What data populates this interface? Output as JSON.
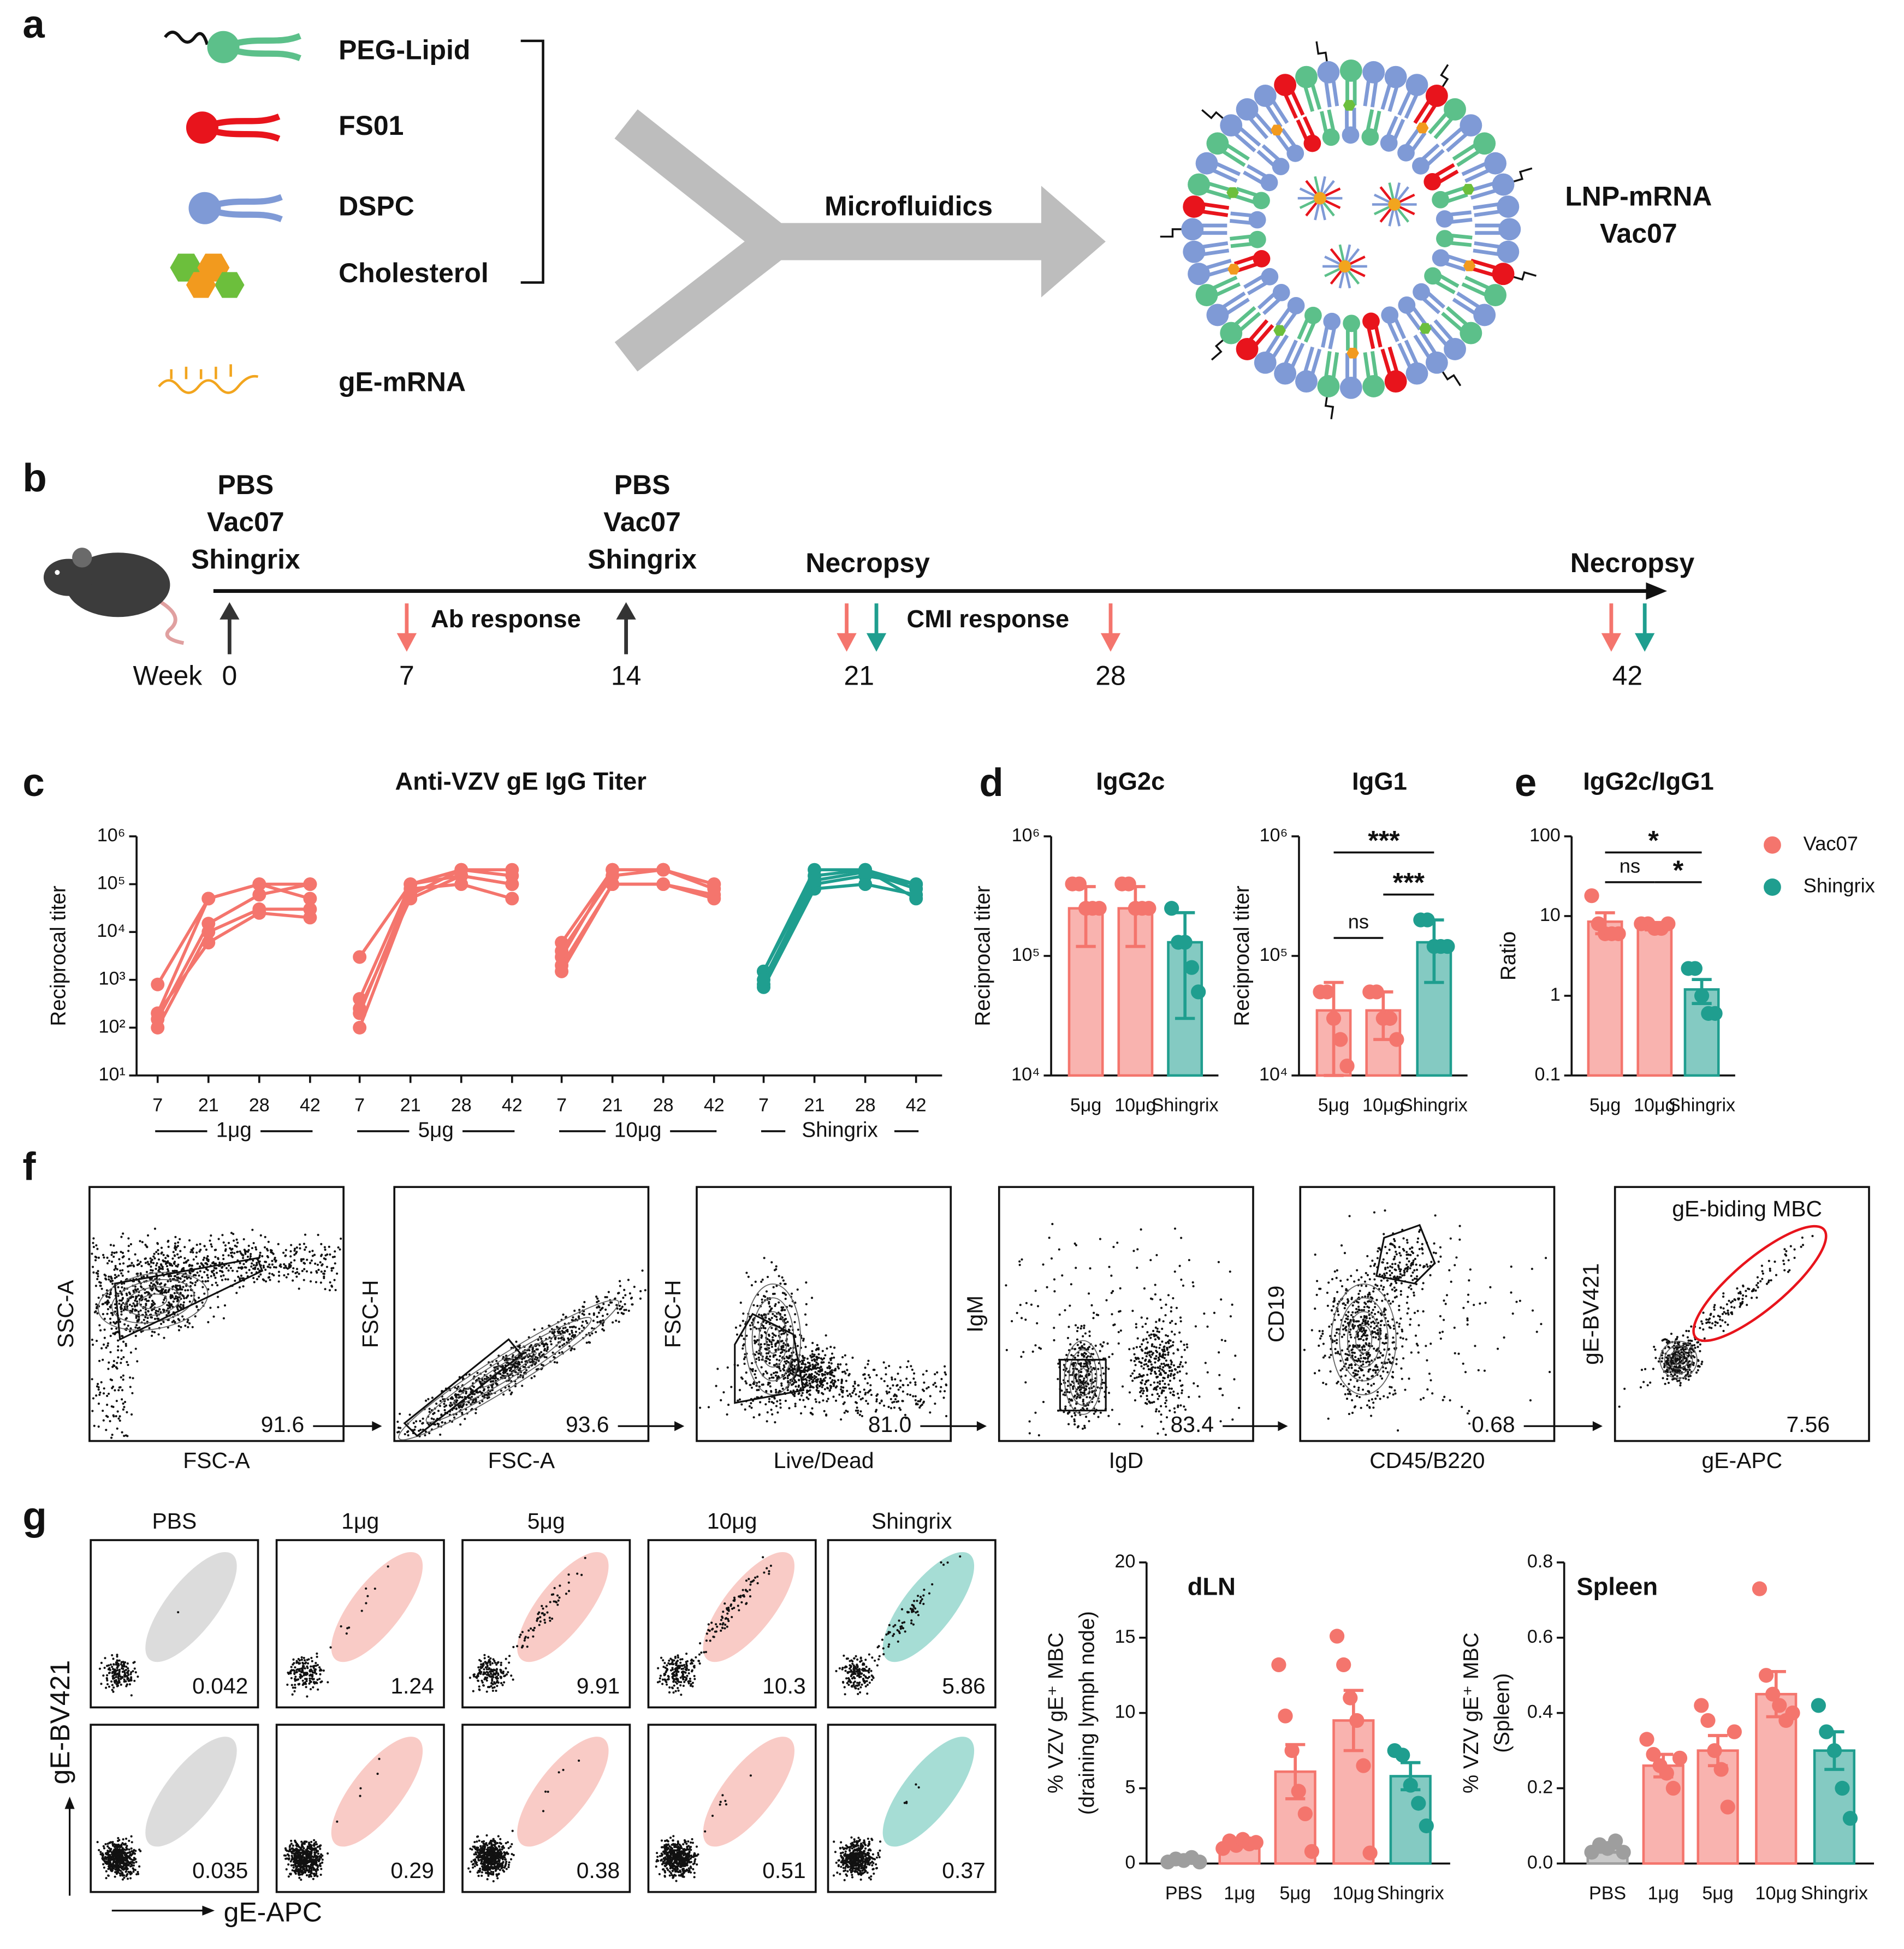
{
  "panel_labels": [
    "a",
    "b",
    "c",
    "d",
    "e",
    "f",
    "g"
  ],
  "formulation": {
    "components": [
      {
        "label": "PEG-Lipid",
        "color": "#5cc08a"
      },
      {
        "label": "FS01",
        "color": "#e8141c"
      },
      {
        "label": "DSPC",
        "color": "#7f9ad6"
      },
      {
        "label": "Cholesterol",
        "color": "#f29a1e"
      },
      {
        "label": "gE-mRNA",
        "color": "#f2a51e"
      }
    ],
    "process": "Microfluidics",
    "product": [
      "LNP-mRNA",
      "Vac07"
    ]
  },
  "schedule": {
    "axis_label": "Week",
    "weeks": [
      0,
      7,
      14,
      21,
      28,
      42
    ],
    "immunizations": [
      [
        "PBS",
        "Vac07",
        "Shingrix"
      ],
      [
        "PBS",
        "Vac07",
        "Shingrix"
      ]
    ],
    "ab_response": "Ab response",
    "cmi_response": "CMI response",
    "necropsy": [
      "Necropsy",
      "Necropsy"
    ]
  },
  "chart_data": [
    {
      "type": "line",
      "title": "Anti-VZV gE IgG Titer",
      "y_label": "Reciprocal titer",
      "log_scale": true,
      "ylim": [
        10,
        1000000
      ],
      "yticks": [
        {
          "value": 10,
          "label": "10¹"
        },
        {
          "value": 100,
          "label": "10²"
        },
        {
          "value": 1000,
          "label": "10³"
        },
        {
          "value": 10000,
          "label": "10⁴"
        },
        {
          "value": 100000,
          "label": "10⁵"
        },
        {
          "value": 1000000,
          "label": "10⁶"
        }
      ],
      "groups": [
        {
          "name": "1μg",
          "color": "#f4756d",
          "categories": [
            7,
            21,
            28,
            42
          ],
          "series": [
            {
              "values": [
                800,
                50000,
                100000,
                100000
              ]
            },
            {
              "values": [
                200,
                50000,
                100000,
                50000
              ]
            },
            {
              "values": [
                150,
                15000,
                60000,
                100000
              ]
            },
            {
              "values": [
                100,
                10000,
                30000,
                30000
              ]
            },
            {
              "values": [
                200,
                6000,
                25000,
                20000
              ]
            }
          ]
        },
        {
          "name": "5μg",
          "color": "#f4756d",
          "categories": [
            7,
            21,
            28,
            42
          ],
          "series": [
            {
              "values": [
                3000,
                100000,
                200000,
                200000
              ]
            },
            {
              "values": [
                400,
                100000,
                150000,
                100000
              ]
            },
            {
              "values": [
                200,
                80000,
                100000,
                50000
              ]
            },
            {
              "values": [
                100,
                60000,
                200000,
                150000
              ]
            },
            {
              "values": [
                250,
                50000,
                150000,
                100000
              ]
            }
          ]
        },
        {
          "name": "10μg",
          "color": "#f4756d",
          "categories": [
            7,
            21,
            28,
            42
          ],
          "series": [
            {
              "values": [
                6000,
                200000,
                200000,
                100000
              ]
            },
            {
              "values": [
                3000,
                200000,
                200000,
                100000
              ]
            },
            {
              "values": [
                2000,
                100000,
                100000,
                60000
              ]
            },
            {
              "values": [
                1500,
                100000,
                100000,
                50000
              ]
            },
            {
              "values": [
                4000,
                150000,
                200000,
                80000
              ]
            }
          ]
        },
        {
          "name": "Shingrix",
          "color": "#1f9e8f",
          "categories": [
            7,
            21,
            28,
            42
          ],
          "series": [
            {
              "values": [
                1500,
                200000,
                200000,
                100000
              ]
            },
            {
              "values": [
                1500,
                150000,
                200000,
                50000
              ]
            },
            {
              "values": [
                800,
                100000,
                150000,
                100000
              ]
            },
            {
              "values": [
                700,
                80000,
                100000,
                60000
              ]
            },
            {
              "values": [
                1000,
                120000,
                180000,
                80000
              ]
            }
          ]
        }
      ]
    },
    {
      "type": "bar",
      "title": "IgG2c",
      "y_label": "Reciprocal titer",
      "log_scale": true,
      "ylim": [
        10000,
        1000000
      ],
      "yticks": [
        {
          "value": 10000,
          "label": "10⁴"
        },
        {
          "value": 100000,
          "label": "10⁵"
        },
        {
          "value": 1000000,
          "label": "10⁶"
        }
      ],
      "categories": [
        "5μg",
        "10μg",
        "Shingrix"
      ],
      "colors": [
        "#f4756d",
        "#f4756d",
        "#1f9e8f"
      ],
      "values": [
        250000,
        250000,
        130000
      ],
      "errors": [
        130000,
        130000,
        100000
      ],
      "points": [
        [
          400000,
          400000,
          250000,
          250000,
          250000
        ],
        [
          400000,
          400000,
          250000,
          250000,
          250000
        ],
        [
          250000,
          130000,
          130000,
          80000,
          50000
        ]
      ]
    },
    {
      "type": "bar",
      "title": "IgG1",
      "y_label": "Reciprocal titer",
      "log_scale": true,
      "ylim": [
        10000,
        1000000
      ],
      "yticks": [
        {
          "value": 10000,
          "label": "10⁴"
        },
        {
          "value": 100000,
          "label": "10⁵"
        },
        {
          "value": 1000000,
          "label": "10⁶"
        }
      ],
      "categories": [
        "5μg",
        "10μg",
        "Shingrix"
      ],
      "colors": [
        "#f4756d",
        "#f4756d",
        "#1f9e8f"
      ],
      "values": [
        35000,
        35000,
        130000
      ],
      "errors": [
        25000,
        15000,
        70000
      ],
      "points": [
        [
          50000,
          50000,
          30000,
          20000,
          12000
        ],
        [
          50000,
          50000,
          30000,
          30000,
          20000
        ],
        [
          200000,
          200000,
          120000,
          120000,
          120000
        ]
      ],
      "comparisons": [
        {
          "groups": [
            "5μg",
            "10μg"
          ],
          "label": "ns"
        },
        {
          "groups": [
            "10μg",
            "Shingrix"
          ],
          "label": "***"
        },
        {
          "groups": [
            "5μg",
            "Shingrix"
          ],
          "label": "***"
        }
      ]
    },
    {
      "type": "bar",
      "title": "IgG2c/IgG1",
      "y_label": "Ratio",
      "log_scale": true,
      "ylim": [
        0.1,
        100
      ],
      "yticks": [
        0.1,
        1,
        10,
        100
      ],
      "categories": [
        "5μg",
        "10μg",
        "Shingrix"
      ],
      "colors": [
        "#f4756d",
        "#f4756d",
        "#1f9e8f"
      ],
      "values": [
        8.5,
        7.5,
        1.2
      ],
      "errors": [
        2.5,
        0.8,
        0.4
      ],
      "points": [
        [
          18,
          8,
          6,
          6,
          6
        ],
        [
          8,
          8,
          7,
          7,
          8
        ],
        [
          2.2,
          2.2,
          1,
          0.6,
          0.6
        ]
      ],
      "comparisons": [
        {
          "groups": [
            "5μg",
            "Shingrix"
          ],
          "label": "*"
        },
        {
          "groups": [
            "5μg",
            "10μg"
          ],
          "label": "ns"
        },
        {
          "groups": [
            "10μg",
            "Shingrix"
          ],
          "label": "*"
        }
      ],
      "legend": [
        {
          "name": "Vac07",
          "color": "#f4756d"
        },
        {
          "name": "Shingrix",
          "color": "#1f9e8f"
        }
      ]
    },
    {
      "type": "bar",
      "title": "dLN",
      "y_label": [
        "% VZV gE⁺ MBC",
        "(draining lymph node)"
      ],
      "log_scale": false,
      "ylim": [
        0,
        20
      ],
      "yticks": [
        0,
        5,
        10,
        15,
        20
      ],
      "categories": [
        "PBS",
        "1μg",
        "5μg",
        "10μg",
        "Shingrix"
      ],
      "colors": [
        "#9e9e9e",
        "#f4756d",
        "#f4756d",
        "#f4756d",
        "#1f9e8f"
      ],
      "values": [
        0.2,
        1.3,
        6.1,
        9.5,
        5.8
      ],
      "errors": [
        0.1,
        0.2,
        1.8,
        2.0,
        0.9
      ],
      "points": [
        [
          0.1,
          0.3,
          0.2,
          0.4,
          0.1
        ],
        [
          1,
          1.5,
          1.2,
          1.6,
          1.3,
          1.4
        ],
        [
          13.2,
          9.8,
          7.5,
          4.8,
          3.3,
          0.8
        ],
        [
          15.1,
          13.2,
          11,
          9.5,
          6.5,
          0.7
        ],
        [
          7.5,
          7.2,
          5.2,
          4,
          2.5
        ]
      ]
    },
    {
      "type": "bar",
      "title": "Spleen",
      "y_label": [
        "% VZV gE⁺ MBC",
        "(Spleen)"
      ],
      "log_scale": false,
      "ylim": [
        0,
        0.8
      ],
      "yticks": [
        {
          "value": 0,
          "label": "0.0"
        },
        0.2,
        0.4,
        0.6,
        0.8
      ],
      "categories": [
        "PBS",
        "1μg",
        "5μg",
        "10μg",
        "Shingrix"
      ],
      "colors": [
        "#9e9e9e",
        "#f4756d",
        "#f4756d",
        "#f4756d",
        "#1f9e8f"
      ],
      "values": [
        0.04,
        0.26,
        0.3,
        0.45,
        0.3
      ],
      "errors": [
        0.01,
        0.03,
        0.04,
        0.06,
        0.05
      ],
      "points": [
        [
          0.03,
          0.05,
          0.04,
          0.06,
          0.03
        ],
        [
          0.33,
          0.29,
          0.26,
          0.24,
          0.2,
          0.28
        ],
        [
          0.42,
          0.38,
          0.3,
          0.25,
          0.15,
          0.35
        ],
        [
          0.73,
          0.5,
          0.45,
          0.42,
          0.38,
          0.4
        ],
        [
          0.42,
          0.35,
          0.3,
          0.2,
          0.12
        ]
      ]
    }
  ],
  "flow_gating": {
    "plots": [
      {
        "y_label": "SSC-A",
        "x_label": "FSC-A",
        "gate": "91.6"
      },
      {
        "y_label": "FSC-H",
        "x_label": "FSC-A",
        "gate": "93.6"
      },
      {
        "y_label": "FSC-H",
        "x_label": "Live/Dead",
        "gate": "81.0"
      },
      {
        "y_label": "IgM",
        "x_label": "IgD",
        "gate": "83.4"
      },
      {
        "y_label": "CD19",
        "x_label": "CD45/B220",
        "gate": "0.68"
      },
      {
        "y_label": "gE-BV421",
        "x_label": "gE-APC",
        "gate": "7.56"
      }
    ],
    "gate_name": "gE-biding MBC"
  },
  "flow_mbc": {
    "y_label": "gE-BV421",
    "x_label": "gE-APC",
    "groups": [
      "PBS",
      "1μg",
      "5μg",
      "10μg",
      "Shingrix"
    ],
    "rows": [
      [
        "0.042",
        "1.24",
        "9.91",
        "10.3",
        "5.86"
      ],
      [
        "0.035",
        "0.29",
        "0.38",
        "0.51",
        "0.37"
      ]
    ]
  }
}
